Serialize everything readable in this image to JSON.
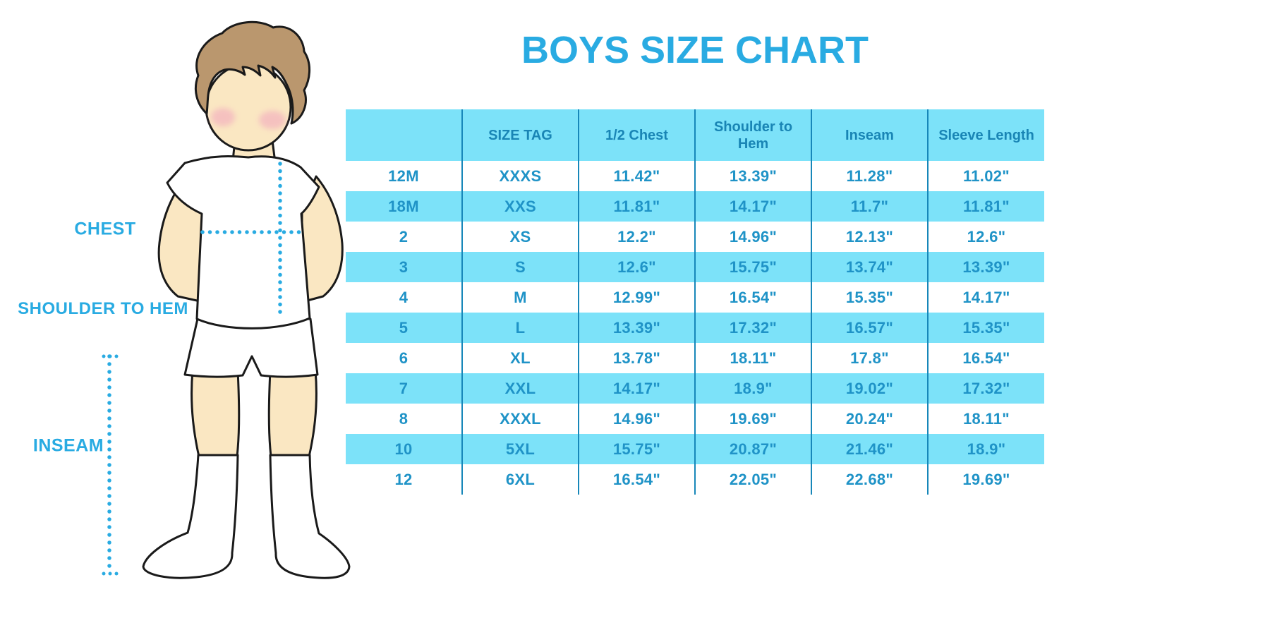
{
  "page": {
    "title": "BOYS SIZE CHART"
  },
  "figure": {
    "description": "cartoon boy in white t-shirt, white shorts and knee socks with dotted measurement guides",
    "labels": {
      "chest": "CHEST",
      "shoulder_to_hem": "SHOULDER TO HEM",
      "inseam": "INSEAM"
    }
  },
  "colors": {
    "accent_blue": "#29ABE2",
    "table_fill_light_blue": "#7CE2F9",
    "table_grid_line": "#1787B9",
    "table_header_text": "#1985B5",
    "table_cell_text": "#1F93C7",
    "skin": "#FAE7C2",
    "hair": "#BA976E",
    "blush": "#F2A9BE"
  },
  "chart_data": {
    "type": "table",
    "title": "BOYS SIZE CHART",
    "units": "inches",
    "columns": [
      "",
      "SIZE TAG",
      "1/2 Chest",
      "Shoulder to Hem",
      "Inseam",
      "Sleeve Length"
    ],
    "rows": [
      [
        "12M",
        "XXXS",
        "11.42\"",
        "13.39\"",
        "11.28\"",
        "11.02\""
      ],
      [
        "18M",
        "XXS",
        "11.81\"",
        "14.17\"",
        "11.7\"",
        "11.81\""
      ],
      [
        "2",
        "XS",
        "12.2\"",
        "14.96\"",
        "12.13\"",
        "12.6\""
      ],
      [
        "3",
        "S",
        "12.6\"",
        "15.75\"",
        "13.74\"",
        "13.39\""
      ],
      [
        "4",
        "M",
        "12.99\"",
        "16.54\"",
        "15.35\"",
        "14.17\""
      ],
      [
        "5",
        "L",
        "13.39\"",
        "17.32\"",
        "16.57\"",
        "15.35\""
      ],
      [
        "6",
        "XL",
        "13.78\"",
        "18.11\"",
        "17.8\"",
        "16.54\""
      ],
      [
        "7",
        "XXL",
        "14.17\"",
        "18.9\"",
        "19.02\"",
        "17.32\""
      ],
      [
        "8",
        "XXXL",
        "14.96\"",
        "19.69\"",
        "20.24\"",
        "18.11\""
      ],
      [
        "10",
        "5XL",
        "15.75\"",
        "20.87\"",
        "21.46\"",
        "18.9\""
      ],
      [
        "12",
        "6XL",
        "16.54\"",
        "22.05\"",
        "22.68\"",
        "19.69\""
      ]
    ],
    "layout": {
      "grid": "vertical column separators only, no horizontal lines",
      "row_shading": "header and alternating rows (18M, 3, 5, 7, 10) light blue; others white",
      "legend": "none"
    }
  }
}
